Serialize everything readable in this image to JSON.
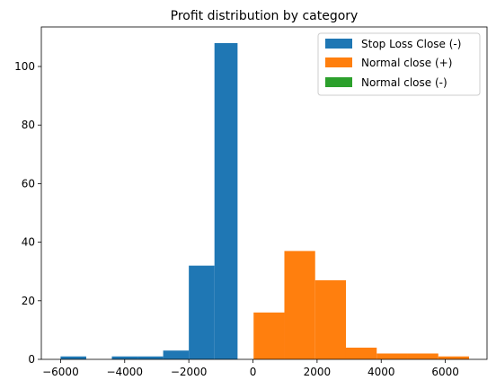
{
  "chart_data": {
    "type": "bar",
    "title": "Profit distribution by category",
    "xlabel": "",
    "ylabel": "",
    "xlim": [
      -6600,
      7300
    ],
    "ylim": [
      0,
      113.5
    ],
    "xticks": [
      -6000,
      -4000,
      -2000,
      0,
      2000,
      4000,
      6000
    ],
    "yticks": [
      0,
      20,
      40,
      60,
      80,
      100
    ],
    "xtick_labels": [
      "−6000",
      "−4000",
      "−2000",
      "0",
      "2000",
      "4000",
      "6000"
    ],
    "ytick_labels": [
      "0",
      "20",
      "40",
      "60",
      "80",
      "100"
    ],
    "grid": false,
    "legend_position": "top-right",
    "series": [
      {
        "name": "Stop Loss Close (-)",
        "color": "#1f77b4",
        "bins": [
          {
            "x0": -6000,
            "x1": -5200,
            "count": 1
          },
          {
            "x0": -4400,
            "x1": -3600,
            "count": 1
          },
          {
            "x0": -3600,
            "x1": -2800,
            "count": 1
          },
          {
            "x0": -2800,
            "x1": -2000,
            "count": 3
          },
          {
            "x0": -2000,
            "x1": -1200,
            "count": 32
          },
          {
            "x0": -1200,
            "x1": -480,
            "count": 108
          }
        ]
      },
      {
        "name": "Normal close (+)",
        "color": "#ff7f0e",
        "bins": [
          {
            "x0": 20,
            "x1": 980,
            "count": 16
          },
          {
            "x0": 980,
            "x1": 1940,
            "count": 37
          },
          {
            "x0": 1940,
            "x1": 2900,
            "count": 27
          },
          {
            "x0": 2900,
            "x1": 3860,
            "count": 4
          },
          {
            "x0": 3860,
            "x1": 4820,
            "count": 2
          },
          {
            "x0": 4820,
            "x1": 5780,
            "count": 2
          },
          {
            "x0": 5780,
            "x1": 6740,
            "count": 1
          }
        ]
      },
      {
        "name": "Normal close (-)",
        "color": "#2ca02c",
        "bins": []
      }
    ]
  }
}
